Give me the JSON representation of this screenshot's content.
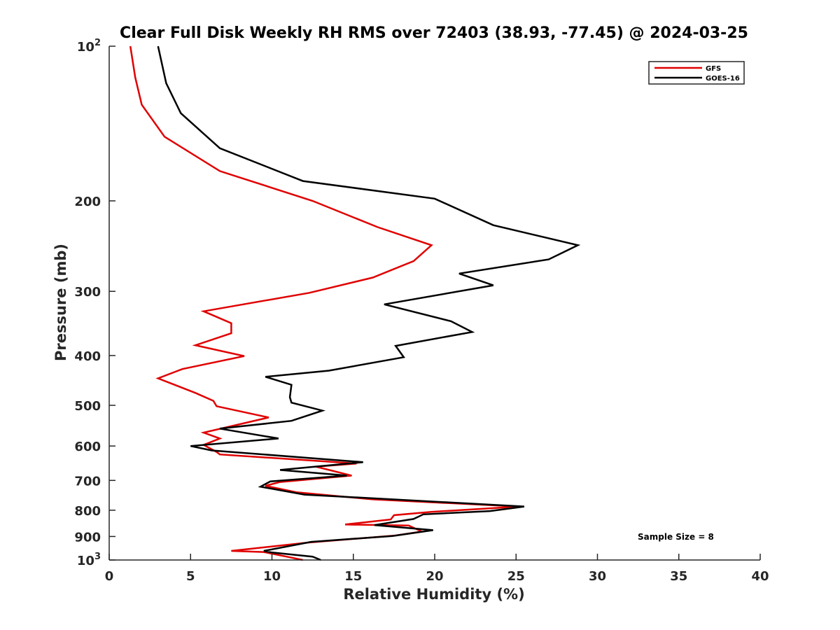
{
  "chart_data": {
    "type": "line",
    "title": "Clear Full Disk Weekly RH RMS over 72403 (38.93, -77.45) @ 2024-03-25",
    "xlabel": "Relative Humidity (%)",
    "ylabel": "Pressure (mb)",
    "xlim": [
      0,
      40
    ],
    "ylim": [
      100,
      1000
    ],
    "y_scale": "log",
    "y_reversed": true,
    "x_ticks": [
      "0",
      "5",
      "10",
      "15",
      "20",
      "25",
      "30",
      "35",
      "40"
    ],
    "y_ticks": [
      {
        "value": 100,
        "base": "10",
        "exp": "2"
      },
      {
        "value": 200,
        "label": "200"
      },
      {
        "value": 300,
        "label": "300"
      },
      {
        "value": 400,
        "label": "400"
      },
      {
        "value": 500,
        "label": "500"
      },
      {
        "value": 600,
        "label": "600"
      },
      {
        "value": 700,
        "label": "700"
      },
      {
        "value": 800,
        "label": "800"
      },
      {
        "value": 900,
        "label": "900"
      },
      {
        "value": 1000,
        "base": "10",
        "exp": "3"
      }
    ],
    "legend_position": "top-right",
    "annotation": "Sample Size = 8",
    "series": [
      {
        "name": "GFS",
        "color": "#e00000",
        "points": [
          [
            1.3,
            100
          ],
          [
            1.6,
            115
          ],
          [
            2.0,
            130
          ],
          [
            3.4,
            150
          ],
          [
            6.8,
            175
          ],
          [
            12.5,
            200
          ],
          [
            16.5,
            225
          ],
          [
            19.8,
            244
          ],
          [
            18.7,
            262
          ],
          [
            16.2,
            282
          ],
          [
            12.3,
            302
          ],
          [
            5.8,
            328
          ],
          [
            7.5,
            346
          ],
          [
            7.5,
            362
          ],
          [
            5.3,
            382
          ],
          [
            8.3,
            401
          ],
          [
            4.5,
            425
          ],
          [
            3.0,
            443
          ],
          [
            5.3,
            473
          ],
          [
            6.4,
            490
          ],
          [
            6.6,
            502
          ],
          [
            9.8,
            528
          ],
          [
            5.8,
            565
          ],
          [
            6.8,
            580
          ],
          [
            5.8,
            597
          ],
          [
            6.6,
            616
          ],
          [
            6.8,
            623
          ],
          [
            15.2,
            649
          ],
          [
            12.7,
            658
          ],
          [
            14.9,
            685
          ],
          [
            10.5,
            705
          ],
          [
            9.6,
            717
          ],
          [
            11.5,
            738
          ],
          [
            16.2,
            762
          ],
          [
            25.2,
            787
          ],
          [
            19.8,
            806
          ],
          [
            17.5,
            818
          ],
          [
            17.3,
            834
          ],
          [
            14.5,
            853
          ],
          [
            18.4,
            857
          ],
          [
            19.2,
            880
          ],
          [
            17.6,
            896
          ],
          [
            12.2,
            925
          ],
          [
            7.5,
            960
          ],
          [
            9.5,
            965
          ],
          [
            10.9,
            985
          ],
          [
            11.9,
            1000
          ]
        ]
      },
      {
        "name": "GOES-16",
        "color": "#000000",
        "points": [
          [
            3.0,
            100
          ],
          [
            3.5,
            118
          ],
          [
            4.4,
            135
          ],
          [
            6.8,
            158
          ],
          [
            11.9,
            183
          ],
          [
            20.0,
            198
          ],
          [
            23.6,
            223
          ],
          [
            28.8,
            244
          ],
          [
            27.0,
            260
          ],
          [
            21.5,
            277
          ],
          [
            23.6,
            292
          ],
          [
            16.9,
            318
          ],
          [
            21.0,
            343
          ],
          [
            22.3,
            360
          ],
          [
            17.6,
            383
          ],
          [
            18.1,
            403
          ],
          [
            13.5,
            428
          ],
          [
            9.6,
            440
          ],
          [
            11.2,
            456
          ],
          [
            11.1,
            482
          ],
          [
            11.2,
            494
          ],
          [
            13.1,
            512
          ],
          [
            11.2,
            536
          ],
          [
            6.8,
            555
          ],
          [
            10.4,
            580
          ],
          [
            5.0,
            600
          ],
          [
            6.3,
            612
          ],
          [
            15.6,
            645
          ],
          [
            10.5,
            668
          ],
          [
            14.6,
            685
          ],
          [
            9.9,
            703
          ],
          [
            9.3,
            720
          ],
          [
            12.0,
            746
          ],
          [
            25.5,
            787
          ],
          [
            23.4,
            803
          ],
          [
            19.3,
            815
          ],
          [
            18.7,
            832
          ],
          [
            16.3,
            855
          ],
          [
            19.9,
            875
          ],
          [
            17.4,
            898
          ],
          [
            12.4,
            922
          ],
          [
            9.5,
            960
          ],
          [
            10.0,
            967
          ],
          [
            12.5,
            985
          ],
          [
            13.0,
            1000
          ]
        ]
      }
    ]
  }
}
